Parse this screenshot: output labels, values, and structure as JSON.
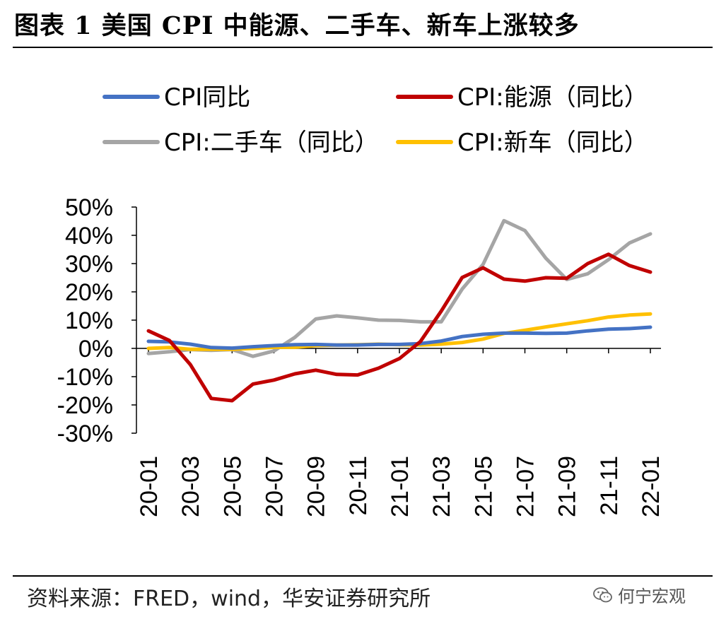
{
  "figure": {
    "title": "图表 1  美国 CPI 中能源、二手车、新车上涨较多",
    "source": "资料来源：FRED，wind，华安证券研究所",
    "watermark": "何宁宏观",
    "watermark_icon": "wechat-icon"
  },
  "chart_data": {
    "type": "line",
    "title": "",
    "xlabel": "",
    "ylabel": "",
    "ylim": [
      -30,
      50
    ],
    "ytick_values": [
      -30,
      -20,
      -10,
      0,
      10,
      20,
      30,
      40,
      50
    ],
    "ytick_labels": [
      "-30%",
      "-20%",
      "-10%",
      "0%",
      "10%",
      "20%",
      "30%",
      "40%",
      "50%"
    ],
    "x": [
      "20-01",
      "20-02",
      "20-03",
      "20-04",
      "20-05",
      "20-06",
      "20-07",
      "20-08",
      "20-09",
      "20-10",
      "20-11",
      "20-12",
      "21-01",
      "21-02",
      "21-03",
      "21-04",
      "21-05",
      "21-06",
      "21-07",
      "21-08",
      "21-09",
      "21-10",
      "21-11",
      "21-12",
      "22-01"
    ],
    "xtick_labels": [
      "20-01",
      "20-03",
      "20-05",
      "20-07",
      "20-09",
      "20-11",
      "21-01",
      "21-03",
      "21-05",
      "21-07",
      "21-09",
      "21-11",
      "22-01"
    ],
    "legend_position": "top",
    "series": [
      {
        "name": "CPI同比",
        "color": "#4472C4",
        "values": [
          2.5,
          2.3,
          1.5,
          0.3,
          0.1,
          0.6,
          1.0,
          1.3,
          1.4,
          1.2,
          1.2,
          1.4,
          1.4,
          1.7,
          2.6,
          4.2,
          5.0,
          5.4,
          5.4,
          5.3,
          5.4,
          6.2,
          6.8,
          7.0,
          7.5
        ]
      },
      {
        "name": "CPI:能源（同比）",
        "color": "#C00000",
        "values": [
          6.2,
          2.8,
          -5.7,
          -17.7,
          -18.5,
          -12.6,
          -11.2,
          -9.0,
          -7.7,
          -9.2,
          -9.4,
          -7.0,
          -3.6,
          2.4,
          13.2,
          25.1,
          28.5,
          24.5,
          23.8,
          25.0,
          24.8,
          30.0,
          33.3,
          29.3,
          27.0
        ]
      },
      {
        "name": "CPI:二手车（同比）",
        "color": "#A5A5A5",
        "values": [
          -1.8,
          -1.2,
          -0.4,
          -0.7,
          -0.4,
          -2.8,
          -0.9,
          3.9,
          10.4,
          11.5,
          10.8,
          10.0,
          9.9,
          9.4,
          9.4,
          21.0,
          29.7,
          45.2,
          41.7,
          31.9,
          24.4,
          26.4,
          31.4,
          37.3,
          40.5
        ]
      },
      {
        "name": "CPI:新车（同比）",
        "color": "#FFC000",
        "values": [
          0.0,
          0.3,
          -0.3,
          -0.3,
          -0.3,
          0.0,
          0.4,
          0.4,
          1.0,
          1.2,
          1.3,
          1.5,
          1.3,
          1.2,
          1.5,
          2.1,
          3.3,
          5.3,
          6.4,
          7.6,
          8.7,
          9.8,
          11.1,
          11.8,
          12.2
        ]
      }
    ]
  }
}
